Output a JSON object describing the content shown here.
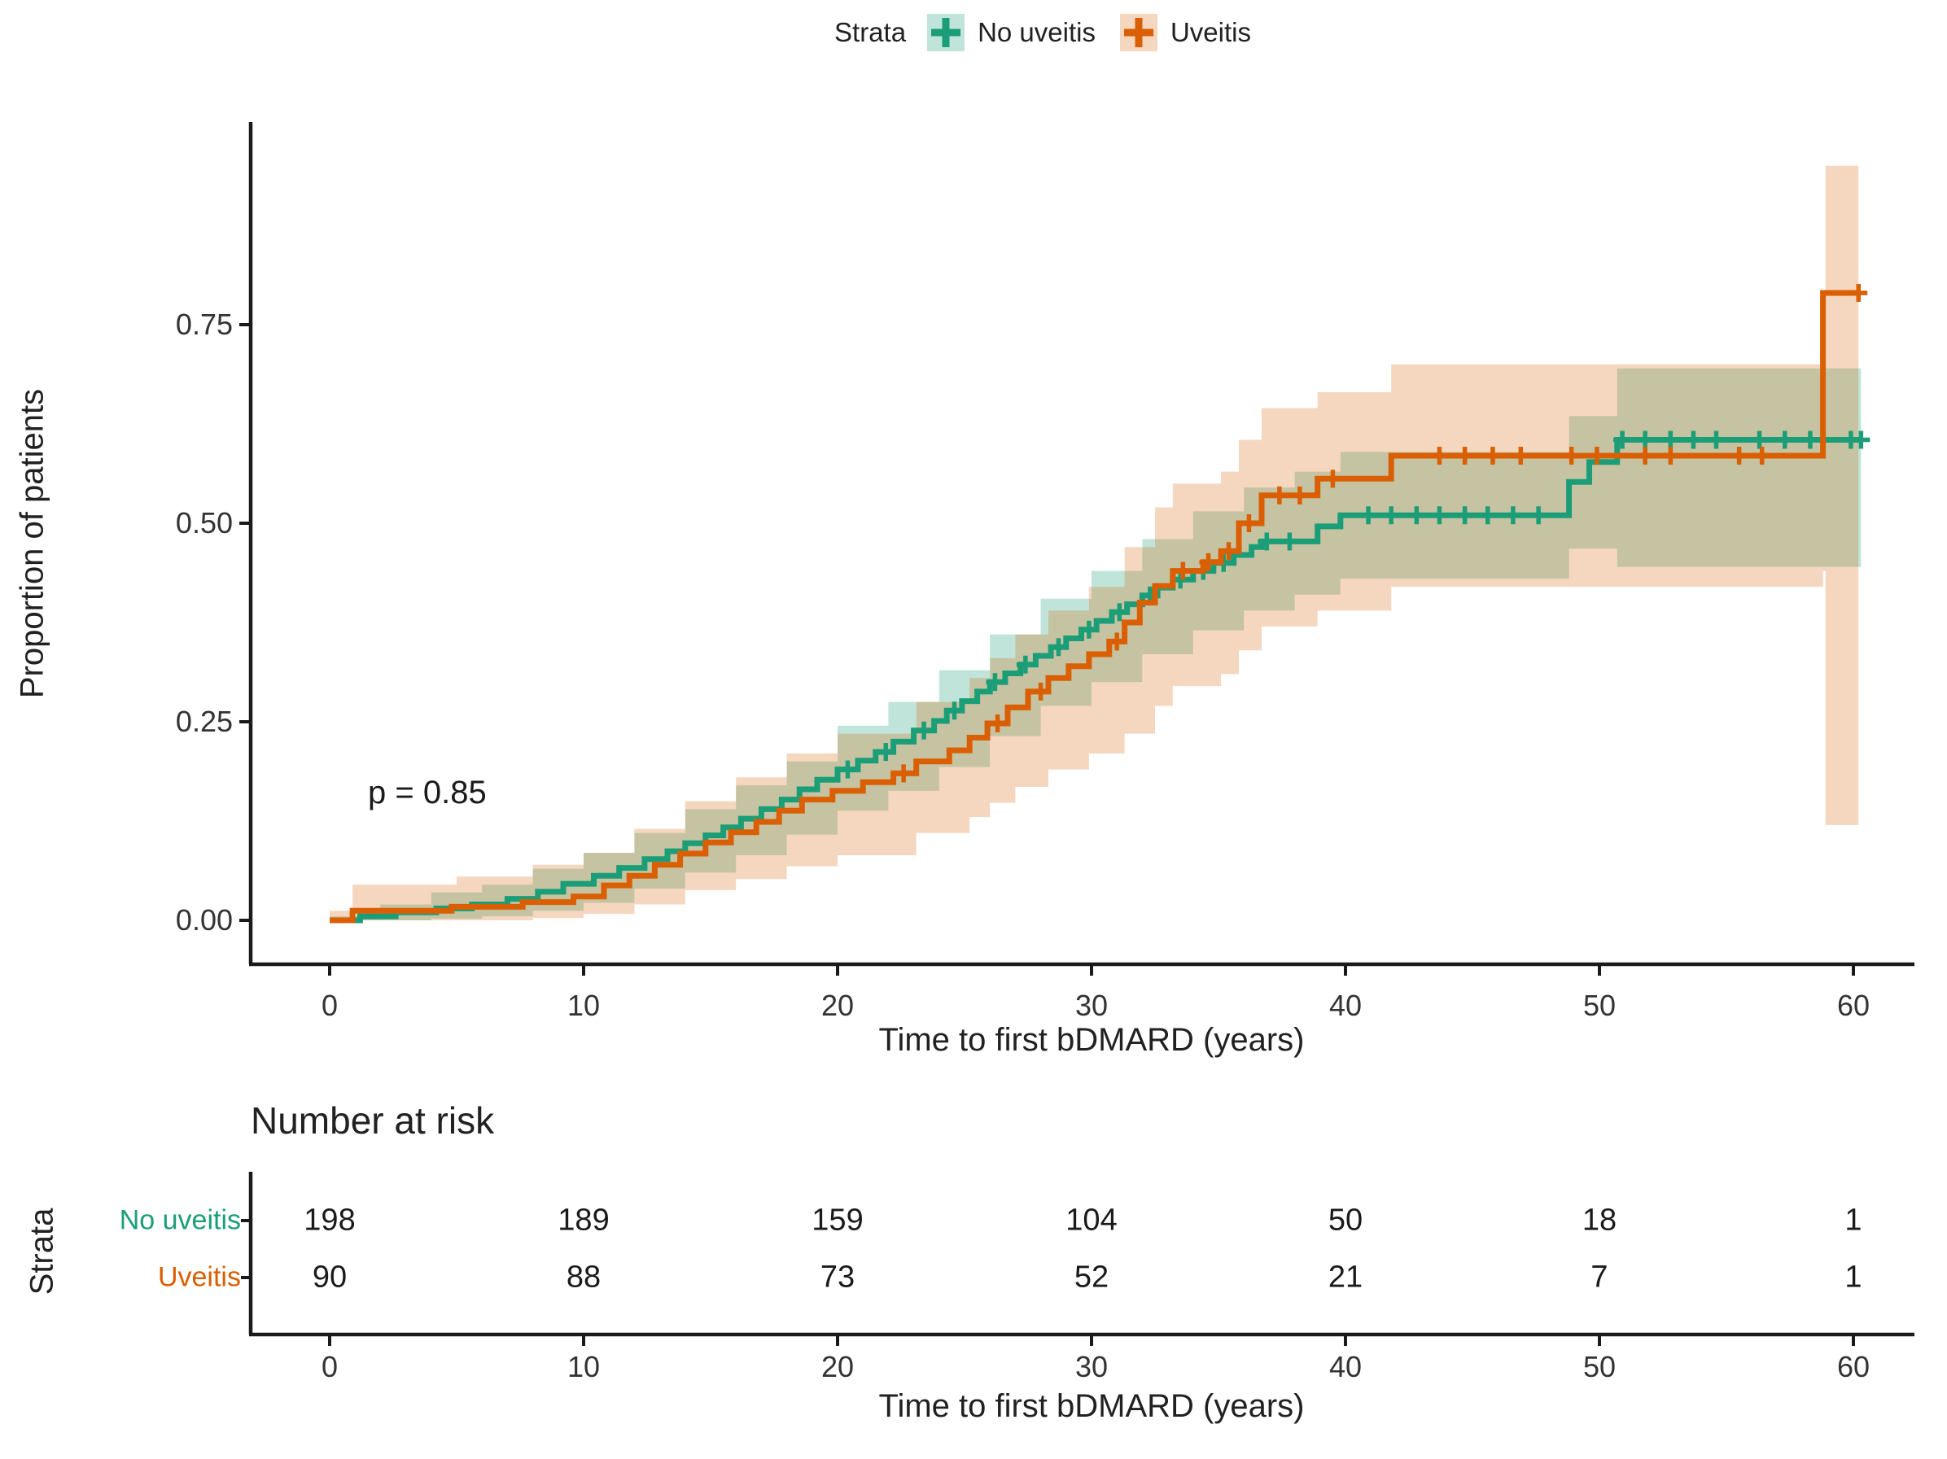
{
  "figure": {
    "p_value": "p = 0.85",
    "ylabel": "Proportion of patients",
    "xlabel": "Time to first bDMARD (years)"
  },
  "legend": {
    "title": "Strata",
    "items": [
      {
        "label": "No uveitis",
        "color": "#1b9e77",
        "fill": "rgba(27,158,119,0.28)"
      },
      {
        "label": "Uveitis",
        "color": "#d95f02",
        "fill": "rgba(217,95,2,0.25)"
      }
    ]
  },
  "chart_data": {
    "type": "line",
    "subtype": "kaplan-meier-cumulative-incidence-step",
    "title": "",
    "xlabel": "Time to first bDMARD (years)",
    "ylabel": "Proportion of patients",
    "xlim": [
      0,
      62
    ],
    "ylim": [
      0,
      1
    ],
    "grid": false,
    "legend_position": "top",
    "legend_title": "Strata",
    "x_ticks": [
      0,
      10,
      20,
      30,
      40,
      50,
      60
    ],
    "y_ticks": [
      "0.00",
      "0.25",
      "0.50",
      "0.75"
    ],
    "y_tick_values": [
      0,
      0.25,
      0.5,
      0.75
    ],
    "p_value_annotation": {
      "text": "p = 0.85",
      "x": 2,
      "y": 0.17
    },
    "series": [
      {
        "name": "No uveitis",
        "color": "#1b9e77",
        "band_fill": "rgba(27,158,119,0.28)",
        "end_time": 60.3,
        "steps": [
          [
            0,
            0
          ],
          [
            1.2,
            0.005
          ],
          [
            2.6,
            0.01
          ],
          [
            4.2,
            0.015
          ],
          [
            5.6,
            0.02
          ],
          [
            7,
            0.027
          ],
          [
            8.2,
            0.036
          ],
          [
            9.2,
            0.046
          ],
          [
            10.4,
            0.056
          ],
          [
            11.4,
            0.066
          ],
          [
            12.4,
            0.077
          ],
          [
            13.3,
            0.087
          ],
          [
            14,
            0.097
          ],
          [
            14.8,
            0.107
          ],
          [
            15.5,
            0.117
          ],
          [
            16.2,
            0.128
          ],
          [
            17,
            0.14
          ],
          [
            17.8,
            0.152
          ],
          [
            18.5,
            0.165
          ],
          [
            19.2,
            0.177
          ],
          [
            20,
            0.19
          ],
          [
            20.8,
            0.201
          ],
          [
            21.5,
            0.212
          ],
          [
            22.2,
            0.225
          ],
          [
            23,
            0.239
          ],
          [
            23.8,
            0.251
          ],
          [
            24.3,
            0.264
          ],
          [
            24.9,
            0.276
          ],
          [
            25.5,
            0.288
          ],
          [
            26,
            0.3
          ],
          [
            26.6,
            0.311
          ],
          [
            27.2,
            0.322
          ],
          [
            27.8,
            0.333
          ],
          [
            28.4,
            0.344
          ],
          [
            29,
            0.355
          ],
          [
            29.6,
            0.366
          ],
          [
            30.2,
            0.377
          ],
          [
            30.8,
            0.388
          ],
          [
            31.4,
            0.398
          ],
          [
            32,
            0.409
          ],
          [
            32.6,
            0.419
          ],
          [
            33.2,
            0.429
          ],
          [
            34,
            0.44
          ],
          [
            34.8,
            0.45
          ],
          [
            35.6,
            0.46
          ],
          [
            36.3,
            0.47
          ],
          [
            36.7,
            0.477
          ],
          [
            38.9,
            0.496
          ],
          [
            39.8,
            0.51
          ],
          [
            48.8,
            0.552
          ],
          [
            49.6,
            0.577
          ],
          [
            50.7,
            0.605
          ]
        ],
        "censor_times": [
          20.4,
          21.9,
          23.4,
          24.6,
          26.2,
          27.4,
          28.7,
          29.9,
          31.1,
          32.3,
          33.5,
          34.4,
          35.2,
          36.9,
          37.8,
          40.9,
          41.8,
          42.8,
          43.7,
          44.7,
          45.6,
          46.6,
          47.6,
          50.9,
          51.8,
          52.8,
          53.7,
          54.6,
          56.3,
          57.3,
          58.3,
          59.9,
          60.3
        ],
        "band": [
          [
            0,
            0,
            0.005
          ],
          [
            2,
            0,
            0.02
          ],
          [
            4,
            0.002,
            0.035
          ],
          [
            6,
            0.005,
            0.045
          ],
          [
            8,
            0.012,
            0.065
          ],
          [
            10,
            0.022,
            0.085
          ],
          [
            12,
            0.04,
            0.11
          ],
          [
            14,
            0.06,
            0.14
          ],
          [
            16,
            0.082,
            0.17
          ],
          [
            18,
            0.108,
            0.2
          ],
          [
            20,
            0.138,
            0.245
          ],
          [
            22,
            0.163,
            0.275
          ],
          [
            24,
            0.193,
            0.315
          ],
          [
            26,
            0.232,
            0.36
          ],
          [
            28,
            0.27,
            0.405
          ],
          [
            30,
            0.3,
            0.44
          ],
          [
            32,
            0.335,
            0.48
          ],
          [
            34,
            0.365,
            0.515
          ],
          [
            36,
            0.39,
            0.545
          ],
          [
            38,
            0.41,
            0.565
          ],
          [
            39.8,
            0.43,
            0.59
          ],
          [
            48.8,
            0.468,
            0.635
          ],
          [
            50.7,
            0.445,
            0.695
          ],
          [
            60.3,
            0.445,
            0.695
          ]
        ]
      },
      {
        "name": "Uveitis",
        "color": "#d95f02",
        "band_fill": "rgba(217,95,2,0.25)",
        "end_time": 60.2,
        "steps": [
          [
            0,
            0
          ],
          [
            0.9,
            0.012
          ],
          [
            4.8,
            0.017
          ],
          [
            7.6,
            0.023
          ],
          [
            9.6,
            0.03
          ],
          [
            10.8,
            0.044
          ],
          [
            11.8,
            0.056
          ],
          [
            12.8,
            0.07
          ],
          [
            13.8,
            0.084
          ],
          [
            14.8,
            0.098
          ],
          [
            15.8,
            0.111
          ],
          [
            16.8,
            0.124
          ],
          [
            17.7,
            0.138
          ],
          [
            18.6,
            0.152
          ],
          [
            19.8,
            0.163
          ],
          [
            21,
            0.174
          ],
          [
            22.2,
            0.185
          ],
          [
            23.1,
            0.2
          ],
          [
            24.4,
            0.214
          ],
          [
            25.2,
            0.23
          ],
          [
            25.9,
            0.248
          ],
          [
            26.7,
            0.268
          ],
          [
            27.5,
            0.288
          ],
          [
            28.3,
            0.305
          ],
          [
            29.1,
            0.32
          ],
          [
            29.9,
            0.335
          ],
          [
            30.7,
            0.351
          ],
          [
            31.3,
            0.375
          ],
          [
            31.9,
            0.4
          ],
          [
            32.5,
            0.421
          ],
          [
            33.2,
            0.44
          ],
          [
            34.4,
            0.451
          ],
          [
            35.1,
            0.465
          ],
          [
            35.8,
            0.5
          ],
          [
            36.7,
            0.535
          ],
          [
            38.9,
            0.556
          ],
          [
            41.8,
            0.585
          ],
          [
            58.8,
            0.79
          ]
        ],
        "censor_times": [
          22.6,
          26.3,
          28.0,
          31.0,
          33.6,
          34.6,
          35.4,
          36.2,
          37.4,
          38.2,
          39.5,
          43.7,
          44.7,
          45.8,
          46.9,
          48.9,
          49.9,
          51.8,
          52.8,
          55.5,
          56.4,
          60.2
        ],
        "band": [
          [
            0,
            0,
            0.012
          ],
          [
            0.9,
            0,
            0.045
          ],
          [
            5,
            0,
            0.055
          ],
          [
            8,
            0.003,
            0.07
          ],
          [
            10,
            0.008,
            0.085
          ],
          [
            12,
            0.02,
            0.115
          ],
          [
            14,
            0.038,
            0.15
          ],
          [
            16,
            0.052,
            0.18
          ],
          [
            18,
            0.068,
            0.21
          ],
          [
            20,
            0.082,
            0.235
          ],
          [
            23.1,
            0.11,
            0.275
          ],
          [
            25.2,
            0.13,
            0.305
          ],
          [
            26,
            0.148,
            0.33
          ],
          [
            27,
            0.168,
            0.36
          ],
          [
            28.3,
            0.19,
            0.39
          ],
          [
            29.9,
            0.21,
            0.42
          ],
          [
            31.3,
            0.235,
            0.47
          ],
          [
            32.5,
            0.27,
            0.52
          ],
          [
            33.2,
            0.295,
            0.55
          ],
          [
            35.1,
            0.31,
            0.565
          ],
          [
            35.8,
            0.34,
            0.605
          ],
          [
            36.7,
            0.37,
            0.645
          ],
          [
            38.9,
            0.39,
            0.665
          ],
          [
            41.8,
            0.42,
            0.7
          ],
          [
            58.8,
            0.44,
            0.7
          ],
          [
            58.9,
            0.12,
            0.95
          ],
          [
            60.2,
            0.12,
            0.95
          ]
        ]
      }
    ],
    "risk_table": {
      "title": "Number at risk",
      "axis_label": "Strata",
      "xlabel": "Time to first bDMARD (years)",
      "times": [
        0,
        10,
        20,
        30,
        40,
        50,
        60
      ],
      "rows": [
        {
          "label": "No uveitis",
          "color": "#1b9e77",
          "counts": [
            198,
            189,
            159,
            104,
            50,
            18,
            1
          ]
        },
        {
          "label": "Uveitis",
          "color": "#d95f02",
          "counts": [
            90,
            88,
            73,
            52,
            21,
            7,
            1
          ]
        }
      ]
    }
  }
}
